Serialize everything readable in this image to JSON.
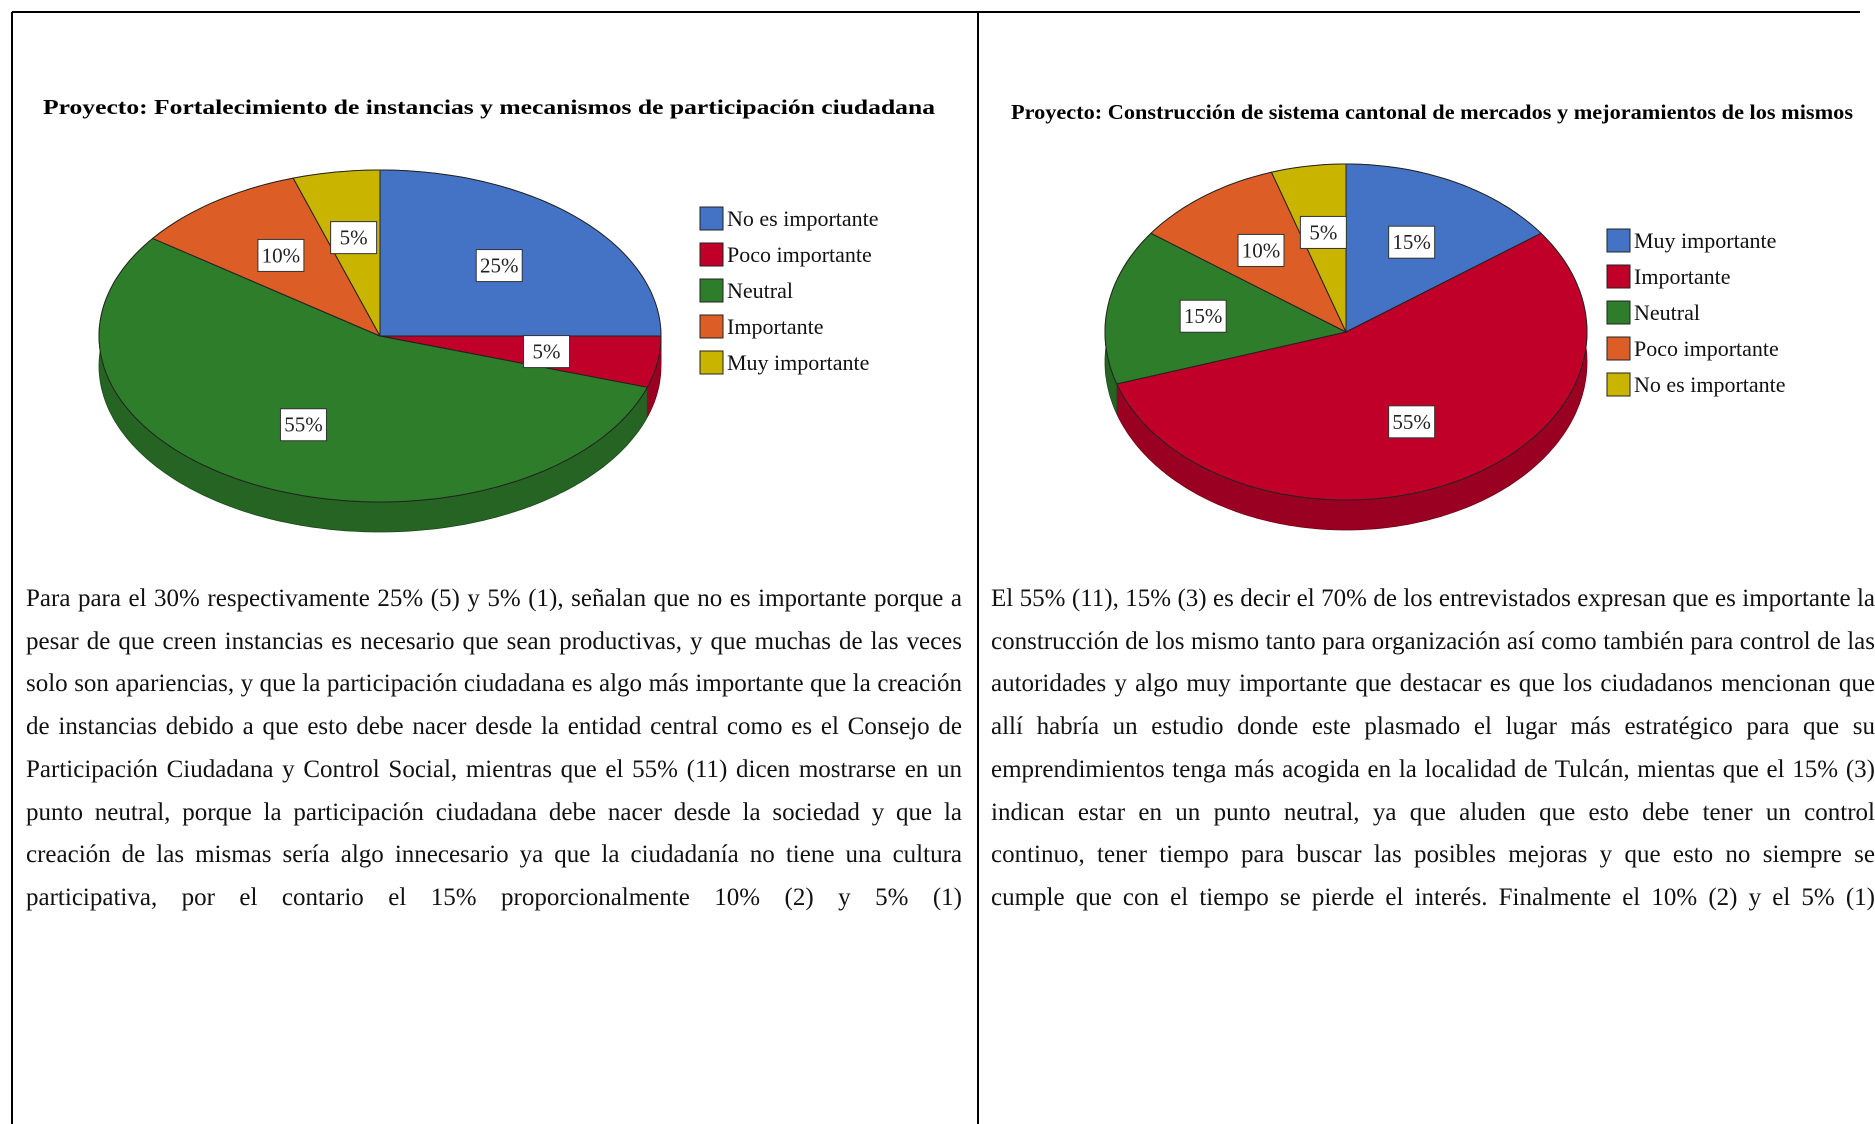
{
  "chart_data": [
    {
      "type": "pie",
      "title": "Proyecto: Fortalecimiento de instancias y mecanismos de participación ciudadana",
      "categories": [
        "No es importante",
        "Poco importante",
        "Neutral",
        "Importante",
        "Muy importante"
      ],
      "values": [
        25,
        5,
        55,
        10,
        5
      ],
      "value_labels": [
        "25%",
        "5%",
        "55%",
        "10%",
        "5%"
      ],
      "colors": [
        "#4472c4",
        "#c00029",
        "#2e7d2a",
        "#dd5d26",
        "#c9b500"
      ],
      "legend": "right"
    },
    {
      "type": "pie",
      "title": "Proyecto: Construcción de sistema cantonal de mercados y mejoramientos de los mismos",
      "categories": [
        "Muy importante",
        "Importante",
        "Neutral",
        "Poco importante",
        "No es importante"
      ],
      "values": [
        15,
        55,
        15,
        10,
        5
      ],
      "value_labels": [
        "15%",
        "55%",
        "15%",
        "10%",
        "5%"
      ],
      "colors": [
        "#4472c4",
        "#c00029",
        "#2e7d2a",
        "#dd5d26",
        "#c9b500"
      ],
      "legend": "right"
    }
  ],
  "paragraphs": [
    "Para para el 30% respectivamente 25% (5) y 5% (1), señalan que no es importante porque a pesar de que creen instancias es necesario que sean productivas, y que muchas de las veces solo son apariencias, y que la participación ciudadana es algo más importante que la creación de instancias debido a que esto debe nacer desde la entidad central como es el Consejo de Participación Ciudadana y Control Social, mientras que el 55% (11) dicen mostrarse en un punto neutral, porque la participación ciudadana debe nacer desde la sociedad y que la creación de las mismas sería algo innecesario ya que la ciudadanía no tiene una cultura participativa, por el contario el 15% proporcionalmente 10% (2) y 5% (1)",
    "El 55% (11), 15% (3) es decir el 70% de los entrevistados expresan que es importante la construcción de los mismo tanto para organización así como también para control de las autoridades y algo muy importante que destacar es que los ciudadanos mencionan que allí habría un estudio donde este plasmado el lugar más estratégico para que su emprendimientos tenga más acogida en la localidad de Tulcán, mientas que el 15% (3) indican estar en un punto neutral, ya que aluden que esto debe tener un control continuo, tener tiempo para buscar las posibles mejoras y que esto no siempre se cumple que con el tiempo se pierde el interés. Finalmente el 10% (2) y el 5% (1)"
  ]
}
